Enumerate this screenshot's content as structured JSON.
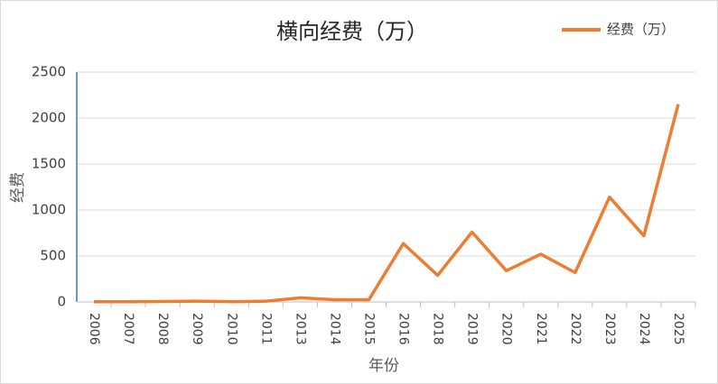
{
  "chart_data": {
    "type": "line",
    "title": "横向经费（万）",
    "x_label": "年份",
    "y_label": "经费",
    "categories": [
      "2006",
      "2007",
      "2008",
      "2009",
      "2010",
      "2011",
      "2013",
      "2014",
      "2015",
      "2016",
      "2018",
      "2019",
      "2020",
      "2021",
      "2022",
      "2023",
      "2024",
      "2025"
    ],
    "series": [
      {
        "name": "经费（万）",
        "color": "#ed7d31",
        "values": [
          2,
          3,
          5,
          8,
          3,
          8,
          45,
          25,
          25,
          635,
          290,
          760,
          340,
          520,
          320,
          1140,
          720,
          2150
        ]
      }
    ],
    "ylim": [
      0,
      2500
    ],
    "yticks": [
      0,
      500,
      1000,
      1500,
      2000,
      2500
    ],
    "grid": true,
    "legend": "top-right"
  }
}
